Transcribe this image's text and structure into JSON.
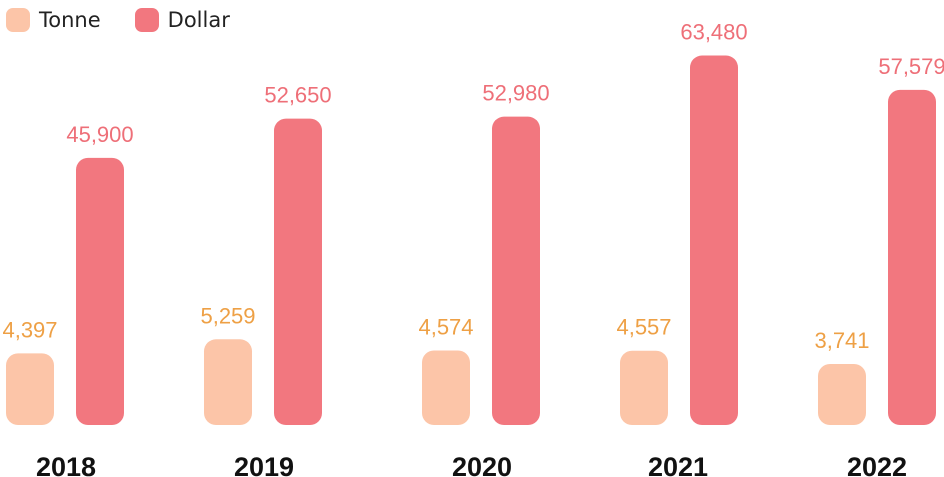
{
  "chart_data": {
    "type": "bar",
    "categories": [
      "2018",
      "2019",
      "2020",
      "2021",
      "2022"
    ],
    "series": [
      {
        "name": "Tonne",
        "values": [
          4397,
          5259,
          4574,
          4557,
          3741
        ],
        "labels": [
          "4,397",
          "5,259",
          "4,574",
          "4,557",
          "3,741"
        ],
        "color": "#fcc5a8",
        "label_color": "#eea045"
      },
      {
        "name": "Dollar",
        "values": [
          45900,
          52650,
          52980,
          63480,
          57579
        ],
        "labels": [
          "45,900",
          "52,650",
          "52,980",
          "63,480",
          "57,579"
        ],
        "color": "#f2777f",
        "label_color": "#ee6f78"
      }
    ],
    "legend": "top-left",
    "grid": false
  }
}
